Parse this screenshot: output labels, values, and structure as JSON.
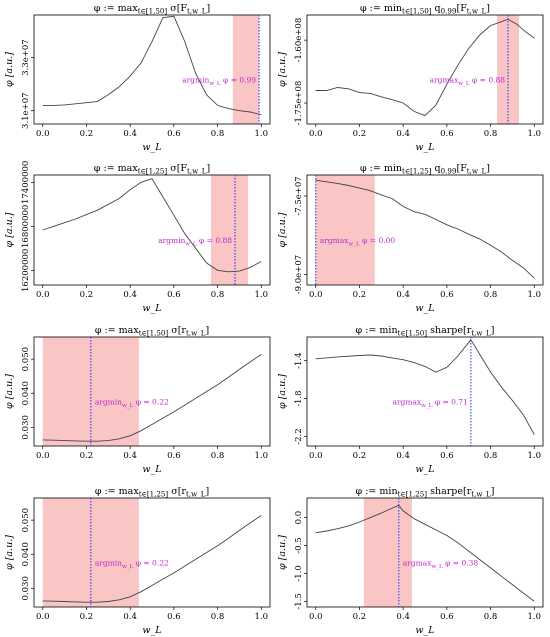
{
  "chart_data": [
    {
      "type": "line",
      "title": "φ := max_{t∈[1,50]} σ[F_{t,w_L}]",
      "xlabel": "w_L",
      "ylabel": "φ [a.u.]",
      "xlim": [
        0,
        1
      ],
      "ylim": [
        30500000,
        34600000
      ],
      "xticks": [
        "0.0",
        "0.2",
        "0.4",
        "0.6",
        "0.8",
        "1.0"
      ],
      "yticks": [
        {
          "v": 31000000,
          "label": "3.1e+07"
        },
        {
          "v": 33000000,
          "label": "3.3e+07"
        }
      ],
      "series": [
        {
          "x": [
            0,
            0.05,
            0.1,
            0.15,
            0.2,
            0.25,
            0.3,
            0.35,
            0.4,
            0.45,
            0.5,
            0.55,
            0.6,
            0.65,
            0.7,
            0.75,
            0.8,
            0.85,
            0.9,
            0.95,
            1.0
          ],
          "y": [
            31200000,
            31200000,
            31220000,
            31260000,
            31300000,
            31350000,
            31600000,
            31900000,
            32300000,
            32800000,
            33600000,
            34500000,
            34550000,
            33600000,
            32400000,
            31600000,
            31200000,
            31080000,
            31000000,
            30950000,
            30850000
          ]
        }
      ],
      "highlight_range": [
        0.87,
        0.99
      ],
      "marker": {
        "x": 0.99,
        "label": "argmin_{w_L} φ = 0.99"
      }
    },
    {
      "type": "line",
      "title": "φ := min_{t∈[1,50]} q_{0.99}[F_{t,w_L}]",
      "xlabel": "w_L",
      "ylabel": "φ [a.u.]",
      "xlim": [
        0,
        1
      ],
      "ylim": [
        -180000000,
        -154000000
      ],
      "xticks": [
        "0.0",
        "0.2",
        "0.4",
        "0.6",
        "0.8",
        "1.0"
      ],
      "yticks": [
        {
          "v": -175000000,
          "label": "-1.75e+08"
        },
        {
          "v": -160000000,
          "label": "-1.60e+08"
        }
      ],
      "series": [
        {
          "x": [
            0,
            0.05,
            0.1,
            0.15,
            0.2,
            0.25,
            0.3,
            0.35,
            0.4,
            0.45,
            0.5,
            0.55,
            0.6,
            0.65,
            0.7,
            0.75,
            0.8,
            0.85,
            0.88,
            0.92,
            0.96,
            1.0
          ],
          "y": [
            -172000000,
            -172000000,
            -171300000,
            -171600000,
            -172500000,
            -172700000,
            -173500000,
            -174200000,
            -175000000,
            -177000000,
            -178000000,
            -175500000,
            -170500000,
            -166000000,
            -162000000,
            -158800000,
            -156500000,
            -155600000,
            -155000000,
            -156200000,
            -158000000,
            -159500000
          ]
        }
      ],
      "highlight_range": [
        0.83,
        0.93
      ],
      "marker": {
        "x": 0.88,
        "label": "argmax_{w_L} φ = 0.88"
      }
    },
    {
      "type": "line",
      "title": "φ := max_{t∈[1,25]} σ[F_{t,w_L}]",
      "xlabel": "w_L",
      "ylabel": "φ [a.u.]",
      "xlim": [
        0,
        1
      ],
      "ylim": [
        16000000,
        17500000
      ],
      "xticks": [
        "0.0",
        "0.2",
        "0.4",
        "0.6",
        "0.8",
        "1.0"
      ],
      "yticks": [
        {
          "v": 16200000,
          "label": "16200000"
        },
        {
          "v": 16800000,
          "label": "16800000"
        },
        {
          "v": 17400000,
          "label": "17400000"
        }
      ],
      "series": [
        {
          "x": [
            0,
            0.05,
            0.1,
            0.15,
            0.2,
            0.25,
            0.3,
            0.35,
            0.4,
            0.45,
            0.5,
            0.55,
            0.6,
            0.65,
            0.7,
            0.75,
            0.8,
            0.85,
            0.9,
            0.95,
            1.0
          ],
          "y": [
            16750000,
            16800000,
            16850000,
            16900000,
            16960000,
            17020000,
            17100000,
            17180000,
            17300000,
            17400000,
            17450000,
            17200000,
            16950000,
            16700000,
            16500000,
            16300000,
            16200000,
            16180000,
            16190000,
            16240000,
            16320000
          ]
        }
      ],
      "highlight_range": [
        0.77,
        0.94
      ],
      "marker": {
        "x": 0.88,
        "label": "argmin_{w_L} φ = 0.88"
      }
    },
    {
      "type": "line",
      "title": "φ := min_{t∈[1,25]} q_{0.99}[F_{t,w_L}]",
      "xlabel": "w_L",
      "ylabel": "φ [a.u.]",
      "xlim": [
        0,
        1
      ],
      "ylim": [
        -92000000,
        -71000000
      ],
      "xticks": [
        "0.0",
        "0.2",
        "0.4",
        "0.6",
        "0.8",
        "1.0"
      ],
      "yticks": [
        {
          "v": -90000000,
          "label": "-9.0e+07"
        },
        {
          "v": -75000000,
          "label": "-7.5e+07"
        }
      ],
      "series": [
        {
          "x": [
            0,
            0.05,
            0.1,
            0.15,
            0.2,
            0.25,
            0.3,
            0.35,
            0.4,
            0.45,
            0.5,
            0.55,
            0.6,
            0.65,
            0.7,
            0.75,
            0.8,
            0.85,
            0.9,
            0.95,
            1.0
          ],
          "y": [
            -72000000,
            -72300000,
            -72600000,
            -73000000,
            -73500000,
            -74000000,
            -74800000,
            -75500000,
            -77000000,
            -78000000,
            -78500000,
            -79500000,
            -80500000,
            -81300000,
            -82300000,
            -83200000,
            -84400000,
            -85700000,
            -87300000,
            -88700000,
            -90700000
          ]
        }
      ],
      "highlight_range": [
        0.0,
        0.27
      ],
      "marker": {
        "x": 0.0,
        "label": "argmax_{w_L} φ = 0.00"
      }
    },
    {
      "type": "line",
      "title": "φ := max_{t∈[1,50]} σ[r_{t,w_L}]",
      "xlabel": "w_L",
      "ylabel": "φ [a.u.]",
      "xlim": [
        0,
        1
      ],
      "ylim": [
        0.0245,
        0.0565
      ],
      "xticks": [
        "0.0",
        "0.2",
        "0.4",
        "0.6",
        "0.8",
        "1.0"
      ],
      "yticks": [
        {
          "v": 0.03,
          "label": "0.030"
        },
        {
          "v": 0.04,
          "label": "0.040"
        },
        {
          "v": 0.05,
          "label": "0.050"
        }
      ],
      "series": [
        {
          "x": [
            0,
            0.05,
            0.1,
            0.15,
            0.2,
            0.22,
            0.25,
            0.3,
            0.35,
            0.4,
            0.45,
            0.5,
            0.55,
            0.6,
            0.65,
            0.7,
            0.75,
            0.8,
            0.85,
            0.9,
            0.95,
            1.0
          ],
          "y": [
            0.0263,
            0.0262,
            0.0261,
            0.026,
            0.0259,
            0.0259,
            0.0259,
            0.0261,
            0.0266,
            0.0275,
            0.029,
            0.0308,
            0.0327,
            0.0345,
            0.0365,
            0.0385,
            0.0405,
            0.0425,
            0.0447,
            0.047,
            0.0492,
            0.0514
          ]
        }
      ],
      "highlight_range": [
        0.0,
        0.44
      ],
      "marker": {
        "x": 0.22,
        "label": "argmin_{w_L} φ = 0.22"
      }
    },
    {
      "type": "line",
      "title": "φ := min_{t∈[1,50]} sharpe[r_{t,w_L}]",
      "xlabel": "w_L",
      "ylabel": "φ [a.u.]",
      "xlim": [
        0,
        1
      ],
      "ylim": [
        -2.3,
        -1.15
      ],
      "xticks": [
        "0.0",
        "0.2",
        "0.4",
        "0.6",
        "0.8",
        "1.0"
      ],
      "yticks": [
        {
          "v": -2.2,
          "label": "-2.2"
        },
        {
          "v": -1.8,
          "label": "-1.8"
        },
        {
          "v": -1.4,
          "label": "-1.4"
        }
      ],
      "series": [
        {
          "x": [
            0,
            0.1,
            0.2,
            0.25,
            0.3,
            0.35,
            0.4,
            0.45,
            0.5,
            0.55,
            0.6,
            0.65,
            0.71,
            0.75,
            0.8,
            0.85,
            0.9,
            0.95,
            1.0
          ],
          "y": [
            -1.38,
            -1.36,
            -1.345,
            -1.34,
            -1.35,
            -1.37,
            -1.39,
            -1.42,
            -1.46,
            -1.52,
            -1.47,
            -1.35,
            -1.18,
            -1.33,
            -1.52,
            -1.68,
            -1.82,
            -1.97,
            -2.18
          ]
        }
      ],
      "highlight_range": null,
      "marker": {
        "x": 0.71,
        "label": "argmax_{w_L} φ = 0.71"
      }
    },
    {
      "type": "line",
      "title": "φ := max_{t∈[1,25]} σ[r_{t,w_L}]",
      "xlabel": "w_L",
      "ylabel": "φ [a.u.]",
      "xlim": [
        0,
        1
      ],
      "ylim": [
        0.0245,
        0.0565
      ],
      "xticks": [
        "0.0",
        "0.2",
        "0.4",
        "0.6",
        "0.8",
        "1.0"
      ],
      "yticks": [
        {
          "v": 0.03,
          "label": "0.030"
        },
        {
          "v": 0.04,
          "label": "0.040"
        },
        {
          "v": 0.05,
          "label": "0.050"
        }
      ],
      "series": [
        {
          "x": [
            0,
            0.05,
            0.1,
            0.15,
            0.2,
            0.22,
            0.25,
            0.3,
            0.35,
            0.4,
            0.45,
            0.5,
            0.55,
            0.6,
            0.65,
            0.7,
            0.75,
            0.8,
            0.85,
            0.9,
            0.95,
            1.0
          ],
          "y": [
            0.0263,
            0.0262,
            0.0261,
            0.026,
            0.0259,
            0.0259,
            0.0259,
            0.0261,
            0.0266,
            0.0275,
            0.029,
            0.0308,
            0.0327,
            0.0345,
            0.0365,
            0.0385,
            0.0405,
            0.0425,
            0.0447,
            0.047,
            0.0492,
            0.0514
          ]
        }
      ],
      "highlight_range": [
        0.0,
        0.44
      ],
      "marker": {
        "x": 0.22,
        "label": "argmin_{w_L} φ = 0.22"
      }
    },
    {
      "type": "line",
      "title": "φ := min_{t∈[1,25]} sharpe[r_{t,w_L}]",
      "xlabel": "w_L",
      "ylabel": "φ [a.u.]",
      "xlim": [
        0,
        1
      ],
      "ylim": [
        -1.6,
        0.35
      ],
      "xticks": [
        "0.0",
        "0.2",
        "0.4",
        "0.6",
        "0.8",
        "1.0"
      ],
      "yticks": [
        {
          "v": -1.5,
          "label": "-1.5"
        },
        {
          "v": -1.0,
          "label": "-1.0"
        },
        {
          "v": -0.5,
          "label": "-0.5"
        },
        {
          "v": 0.0,
          "label": "0.0"
        }
      ],
      "series": [
        {
          "x": [
            0,
            0.05,
            0.1,
            0.15,
            0.2,
            0.25,
            0.3,
            0.35,
            0.38,
            0.4,
            0.45,
            0.5,
            0.55,
            0.6,
            0.65,
            0.7,
            0.75,
            0.8,
            0.85,
            0.9,
            0.95,
            1.0
          ],
          "y": [
            -0.27,
            -0.24,
            -0.2,
            -0.15,
            -0.08,
            0.0,
            0.08,
            0.17,
            0.22,
            0.12,
            -0.02,
            -0.12,
            -0.22,
            -0.32,
            -0.45,
            -0.6,
            -0.75,
            -0.9,
            -1.05,
            -1.2,
            -1.35,
            -1.5
          ]
        }
      ],
      "highlight_range": [
        0.22,
        0.44
      ],
      "marker": {
        "x": 0.38,
        "label": "argmax_{w_L} φ = 0.38"
      }
    }
  ],
  "colors": {
    "line": "#444444",
    "highlight": "#f9c5c5",
    "marker": "#3b3bf0",
    "annotation": "#c026d3"
  }
}
